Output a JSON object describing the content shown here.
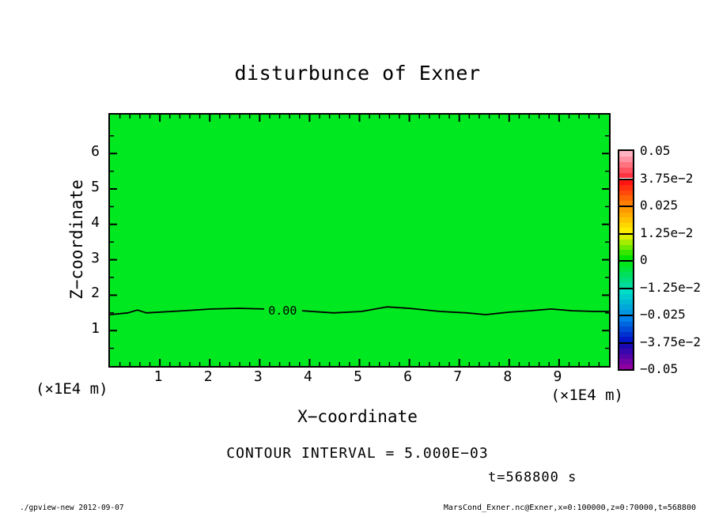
{
  "title": "disturbunce of Exner",
  "field_color": "#00E920",
  "axes": {
    "x": {
      "label": "X−coordinate",
      "unit": "(×1E4 m)",
      "ticks": [
        1,
        2,
        3,
        4,
        5,
        6,
        7,
        8,
        9
      ],
      "minor_step": 0.2,
      "range": [
        0,
        10
      ]
    },
    "z": {
      "label": "Z−coordinate",
      "unit": "(×1E4 m)",
      "ticks": [
        1,
        2,
        3,
        4,
        5,
        6
      ],
      "minor_step": 0.5,
      "range": [
        0,
        7.1
      ]
    }
  },
  "colorbar": {
    "tick_labels": [
      "0.05",
      "3.75e−2",
      "0.025",
      "1.25e−2",
      "0",
      "−1.25e−2",
      "−0.025",
      "−3.75e−2",
      "−0.05"
    ],
    "cells": [
      [
        "#FFB2C2",
        "#FF3340"
      ],
      [
        "#FF1414",
        "#FF8000"
      ],
      [
        "#FF9900",
        "#FFEB00"
      ],
      [
        "#DCF000",
        "#00E400"
      ],
      [
        "#00E41E",
        "#00DC9B"
      ],
      [
        "#00DEC8",
        "#0096E0"
      ],
      [
        "#0080E8",
        "#0018C8"
      ],
      [
        "#1A08B0",
        "#8E00A0"
      ]
    ],
    "min": -0.05,
    "max": 0.05
  },
  "annotations": {
    "contour_interval": "CONTOUR INTERVAL = 5.000E−03",
    "time": "t=568800 s"
  },
  "footer": {
    "left": "./gpview-new  2012-09-07",
    "right": "MarsCond_Exner.nc@Exner,x=0:100000,z=0:70000,t=568800"
  },
  "chart_data": {
    "type": "heatmap",
    "title": "disturbunce of Exner",
    "xlabel": "X-coordinate (×1E4 m)",
    "ylabel": "Z-coordinate (×1E4 m)",
    "xlim": [
      0,
      10
    ],
    "ylim": [
      0,
      7.1
    ],
    "colorbar_range": [
      -0.05,
      0.05
    ],
    "colorbar_ticks": [
      0.05,
      0.0375,
      0.025,
      0.0125,
      0,
      -0.0125,
      -0.025,
      -0.0375,
      -0.05
    ],
    "contour_interval": 0.005,
    "field_note": "entire domain shaded uniform green: |Exner disturbance| < 5e-3 everywhere",
    "contours": [
      {
        "level": 0.0,
        "label": "0.00",
        "label_pos": [
          3.46,
          1.57
        ],
        "segments": [
          [
            [
              0,
              1.45
            ],
            [
              0.36,
              1.5
            ],
            [
              0.55,
              1.58
            ],
            [
              0.73,
              1.5
            ],
            [
              1.47,
              1.56
            ],
            [
              2.03,
              1.61
            ],
            [
              2.58,
              1.63
            ],
            [
              3.09,
              1.61
            ]
          ],
          [
            [
              3.85,
              1.56
            ],
            [
              4.48,
              1.5
            ],
            [
              5.04,
              1.54
            ],
            [
              5.55,
              1.67
            ],
            [
              5.99,
              1.63
            ],
            [
              6.62,
              1.54
            ],
            [
              7.15,
              1.5
            ],
            [
              7.53,
              1.45
            ],
            [
              8.0,
              1.52
            ],
            [
              8.41,
              1.56
            ],
            [
              8.84,
              1.61
            ],
            [
              9.27,
              1.56
            ],
            [
              9.71,
              1.54
            ],
            [
              10,
              1.54
            ]
          ]
        ]
      }
    ]
  }
}
